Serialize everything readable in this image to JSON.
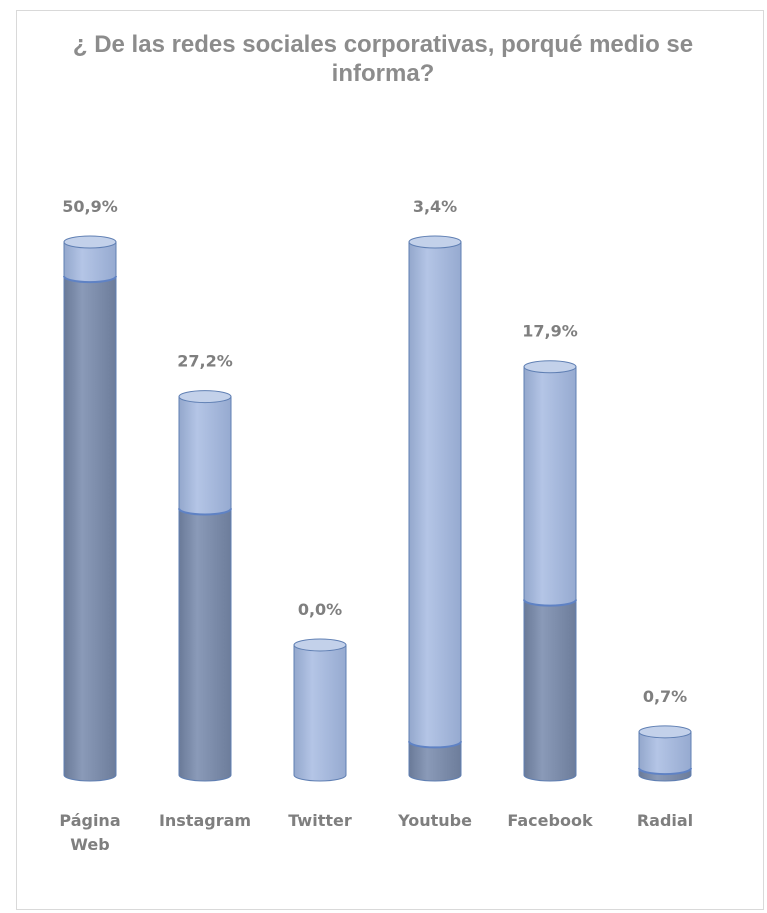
{
  "chart_data": {
    "type": "bar",
    "title": "¿ De las redes sociales corporativas, porqué medio se informa?",
    "categories": [
      [
        "Página",
        "Web"
      ],
      [
        "Instagram"
      ],
      [
        "Twitter"
      ],
      [
        "Youtube"
      ],
      [
        "Facebook"
      ],
      [
        "Radial"
      ]
    ],
    "data_labels": [
      "50,9%",
      "27,2%",
      "0,0%",
      "3,4%",
      "17,9%",
      "0,7%"
    ],
    "series": [
      {
        "values": [
          93.6,
          50.0,
          0.0,
          6.3,
          32.9,
          1.3
        ]
      },
      {
        "values": [
          6.4,
          21.0,
          24.4,
          93.7,
          43.7,
          6.8
        ]
      }
    ],
    "ylim": [
      0,
      100
    ],
    "colors": {
      "lower": "#7a8aa8",
      "upper": "#a7bade",
      "top": "#c3d1ea",
      "edge": "#5f7fb3",
      "text": "#7f7f7f"
    }
  }
}
